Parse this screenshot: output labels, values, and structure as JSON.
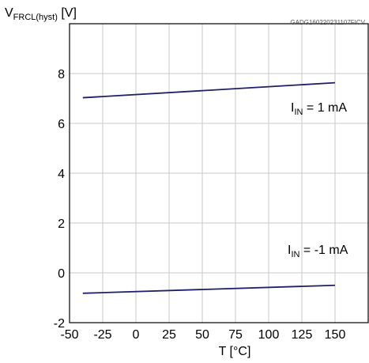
{
  "figure_code": "GADG160220231107FICV",
  "chart_data": {
    "type": "line",
    "ylabel": {
      "main": "V",
      "sub": "FRCL(hyst)",
      "unit": " [V]"
    },
    "xlabel": "T [°C]",
    "xlim": [
      -50,
      175
    ],
    "ylim": [
      -2,
      10
    ],
    "x_ticks": [
      "-50",
      "-25",
      "0",
      "25",
      "50",
      "75",
      "100",
      "125",
      "150"
    ],
    "y_ticks": [
      "-2",
      "0",
      "2",
      "4",
      "6",
      "8"
    ],
    "x_tick_values": [
      -50,
      -25,
      0,
      25,
      50,
      75,
      100,
      125,
      150
    ],
    "y_tick_values": [
      -2,
      0,
      2,
      4,
      6,
      8
    ],
    "grid": true,
    "line_color": "#1f1f6e",
    "series": [
      {
        "label": {
          "main": "I",
          "sub": "IN",
          "rest": " = 1 mA"
        },
        "x": [
          -40,
          150
        ],
        "y": [
          7.03,
          7.63
        ]
      },
      {
        "label": {
          "main": "I",
          "sub": "IN",
          "rest": " = -1 mA"
        },
        "x": [
          -40,
          150
        ],
        "y": [
          -0.82,
          -0.5
        ]
      }
    ]
  }
}
